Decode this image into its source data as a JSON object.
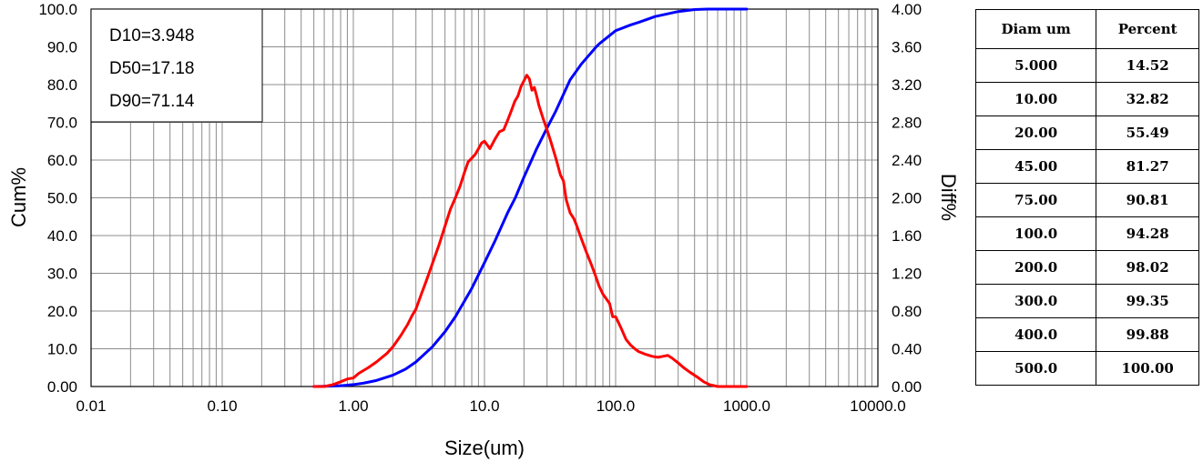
{
  "chart_data": {
    "type": "line",
    "stats": [
      "D10=3.948",
      "D50=17.18",
      "D90=71.14"
    ],
    "xlabel": "Size(um)",
    "ylabel_left": "Cum%",
    "ylabel_right": "Diff%",
    "x_scale": "log",
    "xlim": [
      0.01,
      10000
    ],
    "ylim_left": [
      0,
      100
    ],
    "ylim_right": [
      0,
      4
    ],
    "grid": true,
    "x_ticks": [
      0.01,
      0.1,
      1,
      10,
      100,
      1000,
      10000
    ],
    "x_tick_labels": [
      "0.01",
      "0.10",
      "1.00",
      "10.0",
      "100.0",
      "1000.0",
      "10000.0"
    ],
    "y_left_ticks": [
      0,
      10,
      20,
      30,
      40,
      50,
      60,
      70,
      80,
      90,
      100
    ],
    "y_left_tick_labels": [
      "0.00",
      "10.0",
      "20.0",
      "30.0",
      "40.0",
      "50.0",
      "60.0",
      "70.0",
      "80.0",
      "90.0",
      "100.0"
    ],
    "y_right_ticks": [
      0,
      0.4,
      0.8,
      1.2,
      1.6,
      2.0,
      2.4,
      2.8,
      3.2,
      3.6,
      4.0
    ],
    "y_right_tick_labels": [
      "0.00",
      "0.40",
      "0.80",
      "1.20",
      "1.60",
      "2.00",
      "2.40",
      "2.80",
      "3.20",
      "3.60",
      "4.00"
    ],
    "series": [
      {
        "axis": "left",
        "color": "#0000ff",
        "points": [
          [
            0.5,
            0
          ],
          [
            0.6,
            0.05
          ],
          [
            0.8,
            0.2
          ],
          [
            1.0,
            0.5
          ],
          [
            1.2,
            0.9
          ],
          [
            1.5,
            1.6
          ],
          [
            2.0,
            3.0
          ],
          [
            2.5,
            4.6
          ],
          [
            3.0,
            6.5
          ],
          [
            4.0,
            10.5
          ],
          [
            5.0,
            14.52
          ],
          [
            6.0,
            18.5
          ],
          [
            7.0,
            22.5
          ],
          [
            8.0,
            26
          ],
          [
            10.0,
            32.82
          ],
          [
            12.0,
            38.5
          ],
          [
            15.0,
            46
          ],
          [
            17.18,
            50
          ],
          [
            20.0,
            55.49
          ],
          [
            25.0,
            63
          ],
          [
            30.0,
            68.5
          ],
          [
            35.0,
            73
          ],
          [
            45.0,
            81.27
          ],
          [
            55.0,
            85.5
          ],
          [
            71.14,
            90
          ],
          [
            75.0,
            90.81
          ],
          [
            90.0,
            93
          ],
          [
            100.0,
            94.28
          ],
          [
            130.0,
            95.8
          ],
          [
            150.0,
            96.5
          ],
          [
            200.0,
            98.02
          ],
          [
            300.0,
            99.35
          ],
          [
            400.0,
            99.88
          ],
          [
            500.0,
            100
          ],
          [
            700.0,
            100
          ],
          [
            1000.0,
            100
          ]
        ]
      },
      {
        "axis": "right",
        "color": "#ff0000",
        "points": [
          [
            0.5,
            0
          ],
          [
            0.6,
            0
          ],
          [
            0.7,
            0.02
          ],
          [
            0.8,
            0.05
          ],
          [
            0.9,
            0.08
          ],
          [
            1.0,
            0.09
          ],
          [
            1.1,
            0.14
          ],
          [
            1.3,
            0.2
          ],
          [
            1.5,
            0.26
          ],
          [
            1.8,
            0.35
          ],
          [
            2.0,
            0.42
          ],
          [
            2.3,
            0.54
          ],
          [
            2.6,
            0.66
          ],
          [
            2.8,
            0.75
          ],
          [
            3.0,
            0.82
          ],
          [
            3.3,
            0.98
          ],
          [
            3.6,
            1.12
          ],
          [
            4.0,
            1.3
          ],
          [
            4.5,
            1.5
          ],
          [
            5.0,
            1.7
          ],
          [
            5.5,
            1.88
          ],
          [
            6.0,
            2.0
          ],
          [
            6.5,
            2.12
          ],
          [
            7.0,
            2.26
          ],
          [
            7.5,
            2.38
          ],
          [
            8.0,
            2.42
          ],
          [
            8.5,
            2.46
          ],
          [
            9.0,
            2.52
          ],
          [
            9.5,
            2.58
          ],
          [
            10.0,
            2.6
          ],
          [
            10.5,
            2.56
          ],
          [
            11.0,
            2.52
          ],
          [
            12.0,
            2.62
          ],
          [
            13.0,
            2.7
          ],
          [
            14.0,
            2.72
          ],
          [
            15.0,
            2.82
          ],
          [
            16.0,
            2.92
          ],
          [
            17.0,
            3.02
          ],
          [
            18.0,
            3.08
          ],
          [
            19.0,
            3.18
          ],
          [
            20.0,
            3.24
          ],
          [
            21.0,
            3.3
          ],
          [
            22.0,
            3.26
          ],
          [
            23.0,
            3.14
          ],
          [
            24.0,
            3.17
          ],
          [
            25.0,
            3.08
          ],
          [
            26.0,
            2.98
          ],
          [
            28.0,
            2.84
          ],
          [
            30.0,
            2.72
          ],
          [
            32.0,
            2.6
          ],
          [
            35.0,
            2.42
          ],
          [
            38.0,
            2.24
          ],
          [
            40.0,
            2.18
          ],
          [
            42.0,
            1.98
          ],
          [
            45.0,
            1.84
          ],
          [
            48.0,
            1.78
          ],
          [
            50.0,
            1.72
          ],
          [
            55.0,
            1.56
          ],
          [
            60.0,
            1.42
          ],
          [
            65.0,
            1.3
          ],
          [
            70.0,
            1.18
          ],
          [
            75.0,
            1.06
          ],
          [
            80.0,
            0.98
          ],
          [
            90.0,
            0.88
          ],
          [
            95.0,
            0.74
          ],
          [
            100.0,
            0.74
          ],
          [
            105.0,
            0.68
          ],
          [
            110.0,
            0.62
          ],
          [
            120.0,
            0.5
          ],
          [
            130.0,
            0.44
          ],
          [
            140.0,
            0.4
          ],
          [
            150.0,
            0.37
          ],
          [
            170.0,
            0.34
          ],
          [
            190.0,
            0.32
          ],
          [
            210.0,
            0.31
          ],
          [
            230.0,
            0.32
          ],
          [
            250.0,
            0.33
          ],
          [
            270.0,
            0.3
          ],
          [
            300.0,
            0.25
          ],
          [
            330.0,
            0.2
          ],
          [
            370.0,
            0.15
          ],
          [
            420.0,
            0.1
          ],
          [
            470.0,
            0.05
          ],
          [
            520.0,
            0.02
          ],
          [
            600.0,
            0
          ],
          [
            1000.0,
            0
          ]
        ]
      }
    ]
  },
  "table": {
    "headers": [
      "Diam um",
      "Percent"
    ],
    "rows": [
      [
        "5.000",
        "14.52"
      ],
      [
        "10.00",
        "32.82"
      ],
      [
        "20.00",
        "55.49"
      ],
      [
        "45.00",
        "81.27"
      ],
      [
        "75.00",
        "90.81"
      ],
      [
        "100.0",
        "94.28"
      ],
      [
        "200.0",
        "98.02"
      ],
      [
        "300.0",
        "99.35"
      ],
      [
        "400.0",
        "99.88"
      ],
      [
        "500.0",
        "100.00"
      ]
    ]
  }
}
